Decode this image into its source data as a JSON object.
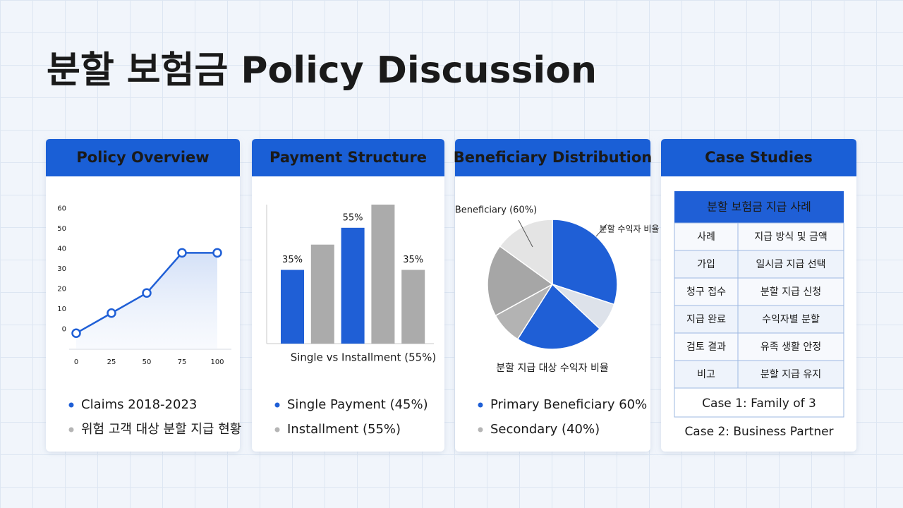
{
  "title": "분할 보험금 Policy Discussion",
  "cards": [
    {
      "header": "Policy Overview",
      "legend": [
        "Claims 2018-2023",
        "위험 고객 대상 분할 지급 현황"
      ]
    },
    {
      "header": "Payment Structure",
      "legend": [
        "Single Payment (45%)",
        "Installment (55%)"
      ]
    },
    {
      "header": "Beneficiary Distribution",
      "legend": [
        "Primary Beneficiary 60%",
        "Secondary (40%)"
      ]
    },
    {
      "header": "Case Studies"
    }
  ],
  "chart_data": [
    {
      "type": "line",
      "x": [
        0,
        25,
        50,
        75,
        100
      ],
      "values": [
        -2,
        8,
        18,
        38,
        38
      ],
      "color": "#1f5fd6",
      "xlim": [
        -5,
        110
      ],
      "xticks": [
        0,
        25,
        50,
        75,
        100
      ],
      "ylim": [
        -10,
        62
      ],
      "yticks": [
        0,
        10,
        20,
        30,
        40,
        50,
        60
      ]
    },
    {
      "type": "bar",
      "values": [
        35,
        47,
        55,
        66,
        35
      ],
      "value_labels": [
        "35%",
        null,
        "55%",
        null,
        "35%"
      ],
      "colors": [
        "#1f5fd6",
        "#ababab",
        "#1f5fd6",
        "#ababab",
        "#ababab"
      ],
      "xlabel": "Single vs Installment (55%)"
    },
    {
      "type": "pie",
      "values": [
        30,
        7,
        22,
        8,
        18,
        15
      ],
      "colors": [
        "#1f5fd6",
        "#dde2ea",
        "#1f5fd6",
        "#b3b3b3",
        "#a6a6a6",
        "#e4e4e4"
      ],
      "annotations": [
        "Beneficiary (60%)",
        "분할 수익자 비율",
        "분할 지급 대상 수익자 비율"
      ]
    }
  ],
  "table": {
    "header": "분할 보험금 지급 사례",
    "rows": [
      [
        "사례",
        "지급 방식 및 금액"
      ],
      [
        "가입",
        "일시금 지급 선택"
      ],
      [
        "청구 접수",
        "분할 지급 신청"
      ],
      [
        "지급 완료",
        "수익자별 분할"
      ],
      [
        "검토 결과",
        "유족 생활 안정"
      ],
      [
        "비고",
        "분할 지급 유지"
      ]
    ],
    "captions": [
      "Case 1: Family of 3",
      "Case 2: Business Partner"
    ]
  }
}
